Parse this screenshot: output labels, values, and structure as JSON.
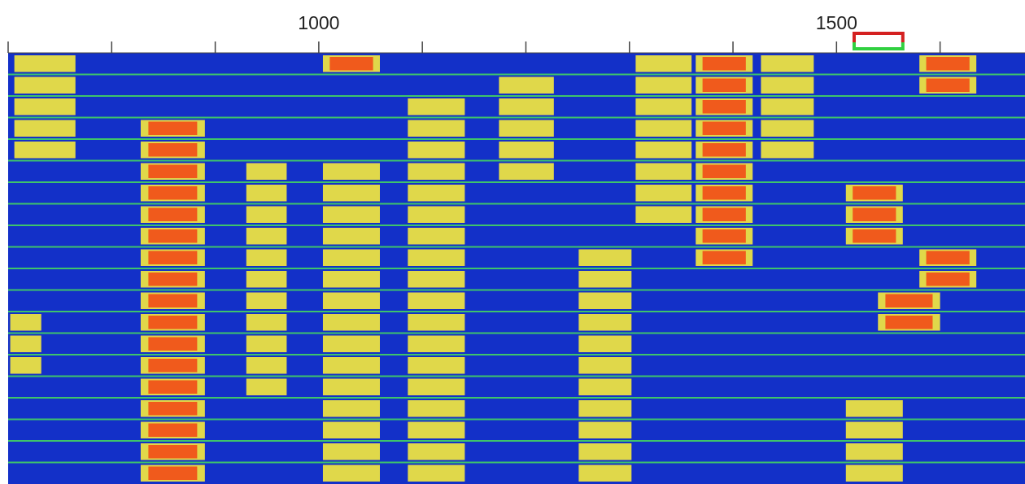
{
  "waterfall": {
    "xlim": [
      700,
      1682
    ],
    "ticks": [
      700,
      800,
      900,
      1000,
      1100,
      1200,
      1300,
      1400,
      1500,
      1600
    ],
    "labels": [
      1000,
      1500
    ],
    "rows": 20,
    "tx_marker": [
      1517,
      1564
    ],
    "rx_marker": [
      1517,
      1564
    ],
    "colors": {
      "background": "#1330c8",
      "separator": "#3ec46a",
      "weak": "#e0d84a",
      "strong": "#f05a1c",
      "tx": "#d42020",
      "rx": "#30d040"
    },
    "signals": [
      {
        "freq": [
          706,
          765
        ],
        "rows": [
          0,
          4
        ],
        "level": 1
      },
      {
        "freq": [
          702,
          732
        ],
        "rows": [
          12,
          14
        ],
        "level": 1
      },
      {
        "freq": [
          828,
          890
        ],
        "rows": [
          3,
          19
        ],
        "level": 2
      },
      {
        "freq": [
          930,
          969
        ],
        "rows": [
          5,
          15
        ],
        "level": 1
      },
      {
        "freq": [
          1004,
          1059
        ],
        "rows": [
          0,
          0
        ],
        "level": 2
      },
      {
        "freq": [
          1004,
          1059
        ],
        "rows": [
          5,
          19
        ],
        "level": 1
      },
      {
        "freq": [
          1086,
          1141
        ],
        "rows": [
          2,
          19
        ],
        "level": 1
      },
      {
        "freq": [
          1174,
          1227
        ],
        "rows": [
          1,
          5
        ],
        "level": 1
      },
      {
        "freq": [
          1251,
          1302
        ],
        "rows": [
          9,
          19
        ],
        "level": 1
      },
      {
        "freq": [
          1306,
          1360
        ],
        "rows": [
          0,
          7
        ],
        "level": 1
      },
      {
        "freq": [
          1364,
          1419
        ],
        "rows": [
          0,
          9
        ],
        "level": 2
      },
      {
        "freq": [
          1427,
          1478
        ],
        "rows": [
          0,
          4
        ],
        "level": 1
      },
      {
        "freq": [
          1509,
          1564
        ],
        "rows": [
          6,
          8
        ],
        "level": 2
      },
      {
        "freq": [
          1509,
          1564
        ],
        "rows": [
          16,
          19
        ],
        "level": 1
      },
      {
        "freq": [
          1580,
          1635
        ],
        "rows": [
          0,
          1
        ],
        "level": 2
      },
      {
        "freq": [
          1580,
          1635
        ],
        "rows": [
          9,
          10
        ],
        "level": 2
      },
      {
        "freq": [
          1540,
          1600
        ],
        "rows": [
          11,
          12
        ],
        "level": 2
      }
    ]
  }
}
